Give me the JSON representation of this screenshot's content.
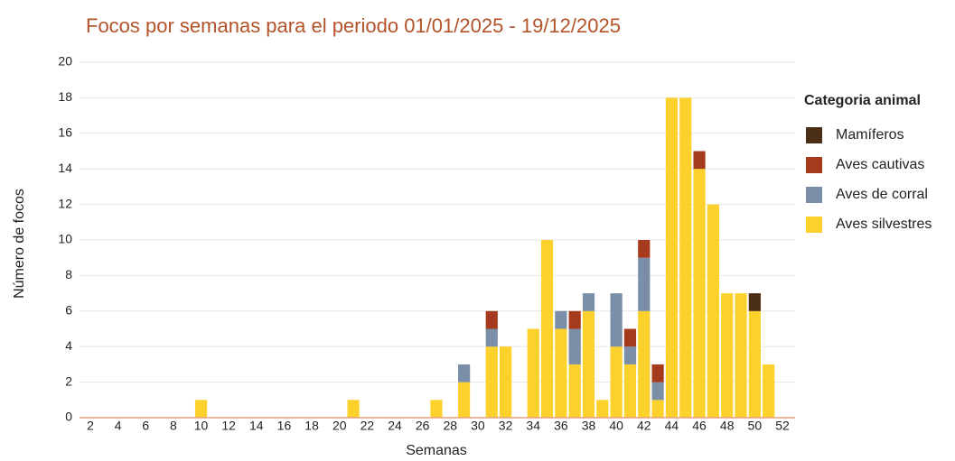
{
  "chart_data": {
    "type": "stacked_bar",
    "title": "Focos por semanas para el periodo 01/01/2025 - 19/12/2025",
    "x_label": "Semanas",
    "y_label": "Número de focos",
    "legend_title": "Categoria animal",
    "legend": "right",
    "categories": [
      null,
      2,
      null,
      4,
      null,
      6,
      null,
      8,
      null,
      10,
      null,
      12,
      null,
      14,
      null,
      16,
      null,
      18,
      null,
      20,
      null,
      22,
      null,
      24,
      null,
      26,
      null,
      28,
      null,
      30,
      null,
      32,
      null,
      34,
      null,
      36,
      null,
      38,
      null,
      40,
      null,
      42,
      null,
      44,
      null,
      46,
      null,
      48,
      null,
      50,
      null,
      52
    ],
    "series": [
      {
        "name": "Mamíferos",
        "color": "#4b2e16",
        "values": [
          0,
          0,
          0,
          0,
          0,
          0,
          0,
          0,
          0,
          0,
          0,
          0,
          0,
          0,
          0,
          0,
          0,
          0,
          0,
          0,
          0,
          0,
          0,
          0,
          0,
          0,
          0,
          0,
          0,
          0,
          0,
          0,
          0,
          0,
          0,
          0,
          0,
          0,
          0,
          0,
          0,
          0,
          0,
          0,
          0,
          0,
          0,
          0,
          0,
          1,
          0,
          0
        ]
      },
      {
        "name": "Aves cautivas",
        "color": "#a63a1c",
        "values": [
          0,
          0,
          0,
          0,
          0,
          0,
          0,
          0,
          0,
          0,
          0,
          0,
          0,
          0,
          0,
          0,
          0,
          0,
          0,
          0,
          0,
          0,
          0,
          0,
          0,
          0,
          0,
          0,
          0,
          0,
          1,
          0,
          0,
          0,
          0,
          0,
          1,
          0,
          0,
          0,
          1,
          1,
          1,
          0,
          0,
          1,
          0,
          0,
          0,
          0,
          0,
          0
        ]
      },
      {
        "name": "Aves de corral",
        "color": "#7a8ea8",
        "values": [
          0,
          0,
          0,
          0,
          0,
          0,
          0,
          0,
          0,
          0,
          0,
          0,
          0,
          0,
          0,
          0,
          0,
          0,
          0,
          0,
          0,
          0,
          0,
          0,
          0,
          0,
          0,
          0,
          1,
          0,
          1,
          0,
          0,
          0,
          0,
          1,
          2,
          1,
          0,
          3,
          1,
          3,
          1,
          0,
          0,
          0,
          0,
          0,
          0,
          0,
          0,
          0
        ]
      },
      {
        "name": "Aves silvestres",
        "color": "#fdd12b",
        "values": [
          0,
          0,
          0,
          0,
          0,
          0,
          0,
          0,
          0,
          1,
          0,
          0,
          0,
          0,
          0,
          0,
          0,
          0,
          0,
          0,
          1,
          0,
          0,
          0,
          0,
          0,
          1,
          0,
          2,
          0,
          4,
          4,
          0,
          5,
          10,
          5,
          3,
          6,
          1,
          4,
          3,
          6,
          1,
          18,
          18,
          14,
          12,
          7,
          7,
          6,
          3,
          0
        ]
      }
    ],
    "ylim": [
      0,
      20
    ],
    "yticks": [
      0,
      2,
      4,
      6,
      8,
      10,
      12,
      14,
      16,
      18,
      20
    ],
    "grid": true
  }
}
